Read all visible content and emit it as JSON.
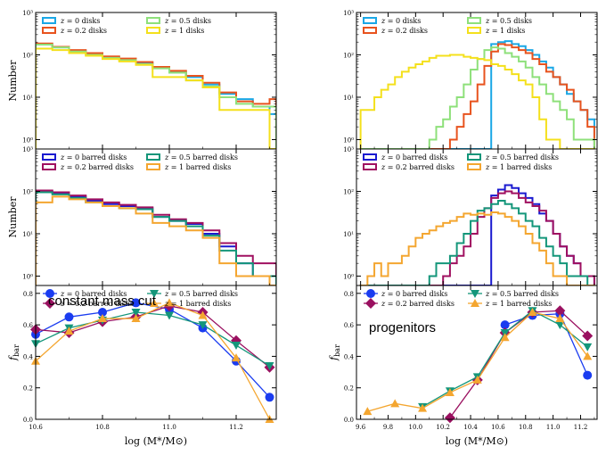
{
  "colors": {
    "z0": "#1aa7e6",
    "z02": "#e8531e",
    "z05": "#8ee07a",
    "z1": "#f4e01c",
    "bz0": "#1a1ad0",
    "bz02": "#a01060",
    "bz05": "#14967a",
    "bz1": "#f4a630",
    "fz0": "#1a3cf0",
    "fz02": "#9a1060",
    "fz05": "#14967a",
    "fz1": "#f4a630"
  },
  "chart_data": [
    {
      "id": "left-top",
      "type": "step-histogram",
      "yscale": "log",
      "ylabel": "Number",
      "xlim": [
        10.6,
        11.32
      ],
      "ylim": [
        0.6,
        1000
      ],
      "yticks": [
        "10⁰",
        "10¹",
        "10²",
        "10³"
      ],
      "bin_edges": [
        10.6,
        10.65,
        10.7,
        10.75,
        10.8,
        10.85,
        10.9,
        10.95,
        11.0,
        11.05,
        11.1,
        11.15,
        11.2,
        11.25,
        11.3,
        11.32
      ],
      "series": [
        {
          "name": "z = 0 disks",
          "color_key": "z0",
          "values": [
            175,
            150,
            125,
            105,
            90,
            80,
            65,
            50,
            40,
            30,
            20,
            12,
            9,
            6,
            4
          ]
        },
        {
          "name": "z = 0.2 disks",
          "color_key": "z02",
          "values": [
            185,
            155,
            130,
            110,
            92,
            82,
            68,
            52,
            42,
            32,
            22,
            13,
            8,
            7,
            9
          ]
        },
        {
          "name": "z = 0.5 disks",
          "color_key": "z05",
          "values": [
            175,
            150,
            120,
            100,
            85,
            75,
            60,
            48,
            38,
            25,
            18,
            10,
            7,
            6,
            6
          ]
        },
        {
          "name": "z = 1 disks",
          "color_key": "z1",
          "values": [
            140,
            130,
            110,
            95,
            80,
            70,
            58,
            30,
            30,
            25,
            17,
            5,
            5,
            5,
            0.5
          ]
        }
      ],
      "legend": [
        {
          "text": "z = 0 disks",
          "color_key": "z0"
        },
        {
          "text": "z = 0.5 disks",
          "color_key": "z05"
        },
        {
          "text": "z = 0.2 disks",
          "color_key": "z02"
        },
        {
          "text": "z = 1 disks",
          "color_key": "z1"
        }
      ]
    },
    {
      "id": "left-mid",
      "type": "step-histogram",
      "yscale": "log",
      "ylabel": "Number",
      "xlim": [
        10.6,
        11.32
      ],
      "ylim": [
        0.6,
        1000
      ],
      "yticks": [
        "10⁰",
        "10¹",
        "10²",
        "10³"
      ],
      "bin_edges": [
        10.6,
        10.65,
        10.7,
        10.75,
        10.8,
        10.85,
        10.9,
        10.95,
        11.0,
        11.05,
        11.1,
        11.15,
        11.2,
        11.25,
        11.3,
        11.32
      ],
      "series": [
        {
          "name": "z = 0 barred disks",
          "color_key": "bz0",
          "values": [
            100,
            90,
            75,
            60,
            50,
            45,
            40,
            25,
            20,
            17,
            10,
            5,
            2,
            1,
            0.5
          ]
        },
        {
          "name": "z = 0.2 barred disks",
          "color_key": "bz02",
          "values": [
            105,
            95,
            80,
            65,
            55,
            48,
            42,
            28,
            22,
            18,
            12,
            6,
            3,
            2,
            2
          ]
        },
        {
          "name": "z = 0.5 barred disks",
          "color_key": "bz05",
          "values": [
            95,
            85,
            70,
            55,
            45,
            40,
            38,
            25,
            20,
            15,
            9,
            4,
            2,
            1,
            1
          ]
        },
        {
          "name": "z = 1 barred disks",
          "color_key": "bz1",
          "values": [
            55,
            75,
            65,
            55,
            45,
            40,
            30,
            18,
            15,
            12,
            8,
            2,
            1,
            1,
            0.5
          ]
        }
      ],
      "legend": [
        {
          "text": "z = 0 barred disks",
          "color_key": "bz0"
        },
        {
          "text": "z = 0.5 barred disks",
          "color_key": "bz05"
        },
        {
          "text": "z = 0.2 barred disks",
          "color_key": "bz02"
        },
        {
          "text": "z = 1 barred disks",
          "color_key": "bz1"
        }
      ]
    },
    {
      "id": "left-bottom",
      "type": "line",
      "ylabel": "f_bar",
      "xlim": [
        10.6,
        11.32
      ],
      "ylim": [
        0.0,
        0.85
      ],
      "xticks": [
        "10.6",
        "10.8",
        "11.0",
        "11.2"
      ],
      "yticks": [
        "0.0",
        "0.2",
        "0.4",
        "0.6",
        "0.8"
      ],
      "annotation": "constant mass cut",
      "series": [
        {
          "name": "z = 0 barred disks",
          "color_key": "fz0",
          "marker": "circle",
          "x": [
            10.6,
            10.7,
            10.8,
            10.9,
            11.0,
            11.1,
            11.2,
            11.3
          ],
          "y": [
            0.54,
            0.65,
            0.68,
            0.74,
            0.7,
            0.58,
            0.37,
            0.14
          ]
        },
        {
          "name": "z = 0.2 barred disks",
          "color_key": "fz02",
          "marker": "diamond",
          "x": [
            10.6,
            10.7,
            10.8,
            10.9,
            11.0,
            11.1,
            11.2,
            11.3
          ],
          "y": [
            0.57,
            0.55,
            0.62,
            0.65,
            0.72,
            0.68,
            0.5,
            0.33
          ]
        },
        {
          "name": "z = 0.5 barred disks",
          "color_key": "fz05",
          "marker": "triangle-down",
          "x": [
            10.6,
            10.7,
            10.8,
            10.9,
            11.0,
            11.1,
            11.2,
            11.3
          ],
          "y": [
            0.48,
            0.58,
            0.63,
            0.68,
            0.66,
            0.6,
            0.47,
            0.34
          ]
        },
        {
          "name": "z = 1 barred disks",
          "color_key": "fz1",
          "marker": "triangle-up",
          "x": [
            10.6,
            10.7,
            10.8,
            10.9,
            11.0,
            11.1,
            11.2,
            11.3
          ],
          "y": [
            0.37,
            0.56,
            0.64,
            0.64,
            0.74,
            0.66,
            0.39,
            0.0
          ]
        }
      ],
      "legend": [
        {
          "text": "z = 0 barred disks",
          "color_key": "fz0",
          "marker": "circle"
        },
        {
          "text": "z = 0.5 barred disks",
          "color_key": "fz05",
          "marker": "triangle-down"
        },
        {
          "text": "z = 0.2 barred disks",
          "color_key": "fz02",
          "marker": "diamond"
        },
        {
          "text": "z = 1 barred disks",
          "color_key": "fz1",
          "marker": "triangle-up"
        }
      ]
    },
    {
      "id": "right-top",
      "type": "step-histogram",
      "yscale": "log",
      "ylabel": "",
      "xlim": [
        9.57,
        11.32
      ],
      "ylim": [
        0.6,
        1000
      ],
      "yticks": [
        "10⁰",
        "10¹",
        "10²",
        "10³"
      ],
      "bin_edges": [
        9.6,
        9.65,
        9.7,
        9.75,
        9.8,
        9.85,
        9.9,
        9.95,
        10.0,
        10.05,
        10.1,
        10.15,
        10.2,
        10.25,
        10.3,
        10.35,
        10.4,
        10.45,
        10.5,
        10.55,
        10.6,
        10.65,
        10.7,
        10.75,
        10.8,
        10.85,
        10.9,
        10.95,
        11.0,
        11.05,
        11.1,
        11.15,
        11.2,
        11.25,
        11.3
      ],
      "series": [
        {
          "name": "z = 0 disks",
          "color_key": "z0",
          "values": [
            0.5,
            0.5,
            0.5,
            0.5,
            0.5,
            0.5,
            0.5,
            0.5,
            0.5,
            0.5,
            0.5,
            0.5,
            0.5,
            0.5,
            0.5,
            0.5,
            0.5,
            0.5,
            0.5,
            180,
            200,
            210,
            180,
            160,
            130,
            100,
            70,
            50,
            30,
            20,
            12,
            8,
            5,
            3
          ]
        },
        {
          "name": "z = 0.2 disks",
          "color_key": "z02",
          "values": [
            0.5,
            0.5,
            0.5,
            0.5,
            0.5,
            0.5,
            0.5,
            0.5,
            0.5,
            0.5,
            0.5,
            0.5,
            0.5,
            1,
            2,
            4,
            8,
            20,
            55,
            120,
            180,
            170,
            150,
            130,
            110,
            80,
            60,
            40,
            30,
            20,
            15,
            8,
            5,
            2
          ]
        },
        {
          "name": "z = 0.5 disks",
          "color_key": "z05",
          "values": [
            0.5,
            0.5,
            0.5,
            0.5,
            0.5,
            0.5,
            0.5,
            0.5,
            0.5,
            0.5,
            1,
            2,
            3,
            6,
            10,
            20,
            45,
            80,
            130,
            150,
            140,
            110,
            90,
            70,
            50,
            30,
            20,
            12,
            8,
            5,
            3,
            1,
            1,
            1
          ]
        },
        {
          "name": "z = 1 disks",
          "color_key": "z1",
          "values": [
            5,
            5,
            10,
            15,
            20,
            30,
            40,
            50,
            60,
            70,
            85,
            95,
            95,
            100,
            100,
            90,
            85,
            80,
            75,
            60,
            55,
            45,
            35,
            25,
            20,
            10,
            3,
            1,
            1,
            0.5,
            0.5,
            0.5,
            0.5,
            0.5
          ]
        }
      ],
      "legend": [
        {
          "text": "z = 0 disks",
          "color_key": "z0"
        },
        {
          "text": "z = 0.5 disks",
          "color_key": "z05"
        },
        {
          "text": "z = 0.2 disks",
          "color_key": "z02"
        },
        {
          "text": "z = 1 disks",
          "color_key": "z1"
        }
      ]
    },
    {
      "id": "right-mid",
      "type": "step-histogram",
      "yscale": "log",
      "ylabel": "",
      "xlim": [
        9.57,
        11.32
      ],
      "ylim": [
        0.6,
        1000
      ],
      "yticks": [
        "10⁰",
        "10¹",
        "10²",
        "10³"
      ],
      "bin_edges": [
        9.6,
        9.65,
        9.7,
        9.75,
        9.8,
        9.85,
        9.9,
        9.95,
        10.0,
        10.05,
        10.1,
        10.15,
        10.2,
        10.25,
        10.3,
        10.35,
        10.4,
        10.45,
        10.5,
        10.55,
        10.6,
        10.65,
        10.7,
        10.75,
        10.8,
        10.85,
        10.9,
        10.95,
        11.0,
        11.05,
        11.1,
        11.15,
        11.2,
        11.25,
        11.3
      ],
      "series": [
        {
          "name": "z = 0 barred disks",
          "color_key": "bz0",
          "values": [
            0.5,
            0.5,
            0.5,
            0.5,
            0.5,
            0.5,
            0.5,
            0.5,
            0.5,
            0.5,
            0.5,
            0.5,
            0.5,
            0.5,
            0.5,
            0.5,
            0.5,
            0.5,
            0.5,
            80,
            110,
            140,
            120,
            90,
            70,
            50,
            30,
            20,
            10,
            5,
            3,
            2,
            1,
            1
          ]
        },
        {
          "name": "z = 0.2 barred disks",
          "color_key": "bz02",
          "values": [
            0.5,
            0.5,
            0.5,
            0.5,
            0.5,
            0.5,
            0.5,
            0.5,
            0.5,
            0.5,
            0.5,
            0.5,
            1,
            2,
            3,
            5,
            10,
            25,
            40,
            70,
            90,
            100,
            90,
            70,
            55,
            45,
            35,
            20,
            10,
            5,
            3,
            2,
            1,
            1
          ]
        },
        {
          "name": "z = 0.5 barred disks",
          "color_key": "bz05",
          "values": [
            0.5,
            0.5,
            0.5,
            0.5,
            0.5,
            0.5,
            0.5,
            0.5,
            0.5,
            0.5,
            1,
            2,
            2,
            3,
            6,
            10,
            20,
            35,
            40,
            50,
            60,
            50,
            40,
            30,
            20,
            15,
            8,
            5,
            3,
            2,
            1,
            1,
            1,
            0.5
          ]
        },
        {
          "name": "z = 1 barred disks",
          "color_key": "bz1",
          "values": [
            0.5,
            1,
            2,
            1,
            2,
            2,
            3,
            5,
            8,
            10,
            12,
            15,
            18,
            20,
            25,
            30,
            28,
            30,
            28,
            32,
            30,
            25,
            20,
            15,
            10,
            6,
            4,
            2,
            1,
            1,
            0.5,
            0.5,
            0.5,
            0.5
          ]
        }
      ],
      "legend": [
        {
          "text": "z = 0 barred disks",
          "color_key": "bz0"
        },
        {
          "text": "z = 0.5 barred disks",
          "color_key": "bz05"
        },
        {
          "text": "z = 0.2 barred disks",
          "color_key": "bz02"
        },
        {
          "text": "z = 1 barred disks",
          "color_key": "bz1"
        }
      ]
    },
    {
      "id": "right-bottom",
      "type": "line",
      "ylabel": "f_bar",
      "xlim": [
        9.57,
        11.32
      ],
      "ylim": [
        0.0,
        0.85
      ],
      "xticks": [
        "9.6",
        "9.8",
        "10.0",
        "10.2",
        "10.4",
        "10.6",
        "10.8",
        "11.0",
        "11.2"
      ],
      "yticks": [
        "0.0",
        "0.2",
        "0.4",
        "0.6",
        "0.8"
      ],
      "annotation": "progenitors",
      "series": [
        {
          "name": "z = 0 barred disks",
          "color_key": "fz0",
          "marker": "circle",
          "x": [
            10.65,
            10.85,
            11.05,
            11.25
          ],
          "y": [
            0.6,
            0.66,
            0.67,
            0.28
          ]
        },
        {
          "name": "z = 0.2 barred disks",
          "color_key": "fz02",
          "marker": "diamond",
          "x": [
            10.25,
            10.45,
            10.65,
            10.85,
            11.05,
            11.25
          ],
          "y": [
            0.01,
            0.25,
            0.55,
            0.68,
            0.69,
            0.53
          ]
        },
        {
          "name": "z = 0.5 barred disks",
          "color_key": "fz05",
          "marker": "triangle-down",
          "x": [
            10.05,
            10.25,
            10.45,
            10.65,
            10.85,
            11.05,
            11.25
          ],
          "y": [
            0.08,
            0.18,
            0.27,
            0.55,
            0.69,
            0.6,
            0.46
          ]
        },
        {
          "name": "z = 1 barred disks",
          "color_key": "fz1",
          "marker": "triangle-up",
          "x": [
            9.65,
            9.85,
            10.05,
            10.25,
            10.45,
            10.65,
            10.85,
            11.05,
            11.25
          ],
          "y": [
            0.05,
            0.1,
            0.07,
            0.17,
            0.25,
            0.52,
            0.68,
            0.64,
            0.4
          ]
        }
      ],
      "legend": [
        {
          "text": "z = 0 barred disks",
          "color_key": "fz0",
          "marker": "circle"
        },
        {
          "text": "z = 0.5 barred disks",
          "color_key": "fz05",
          "marker": "triangle-down"
        },
        {
          "text": "z = 0.2 barred disks",
          "color_key": "fz02",
          "marker": "diamond"
        },
        {
          "text": "z = 1 barred disks",
          "color_key": "fz1",
          "marker": "triangle-up"
        }
      ]
    }
  ],
  "xlabel": "log (M*/M⊙)"
}
